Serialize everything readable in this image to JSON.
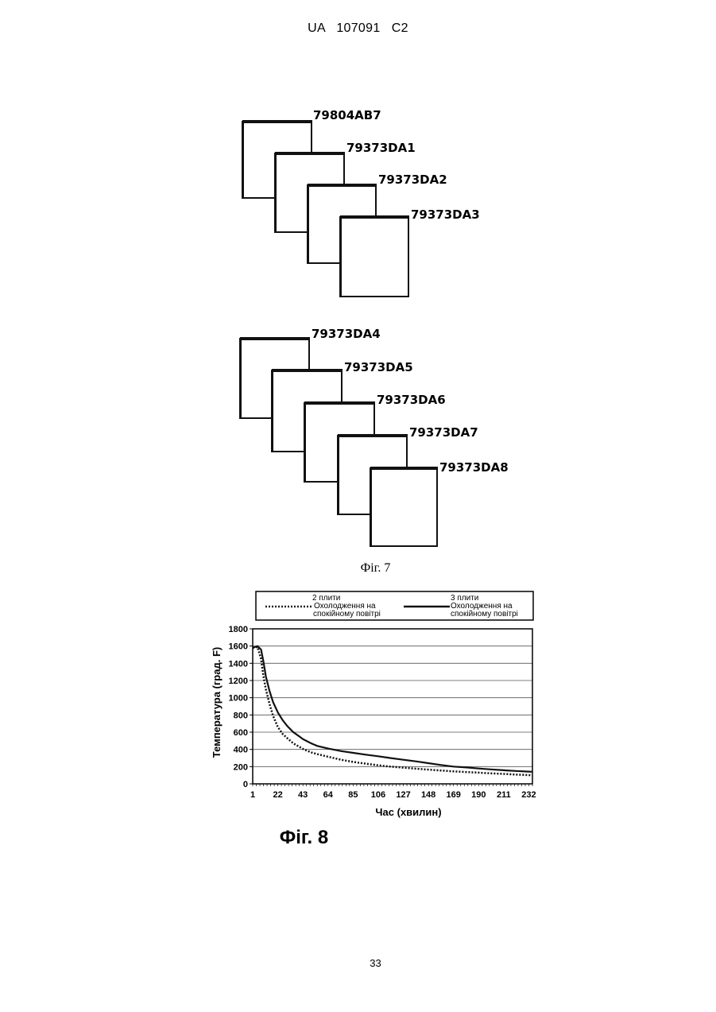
{
  "header": {
    "text": "UA   107091   C2"
  },
  "figure7": {
    "caption": "Фіг. 7",
    "group1": [
      "79804AB7",
      "79373DA1",
      "79373DA2",
      "79373DA3"
    ],
    "group2": [
      "79373DA4",
      "79373DA5",
      "79373DA6",
      "79373DA7",
      "79373DA8"
    ]
  },
  "figure8": {
    "caption": "Фіг. 8"
  },
  "page_number": "33",
  "chart_data": {
    "type": "line",
    "title": "",
    "xlabel": "Час (хвилин)",
    "ylabel": "Температура (град. F)",
    "x_ticks": [
      "1",
      "22",
      "43",
      "64",
      "85",
      "106",
      "127",
      "148",
      "169",
      "190",
      "211",
      "232"
    ],
    "y_ticks": [
      "0",
      "200",
      "400",
      "600",
      "800",
      "1000",
      "1200",
      "1400",
      "1600",
      "1800"
    ],
    "xlim": [
      1,
      235
    ],
    "ylim": [
      0,
      1800
    ],
    "grid": true,
    "legend_position": "top",
    "x": [
      1,
      5,
      8,
      10,
      12,
      15,
      18,
      22,
      26,
      30,
      35,
      40,
      43,
      50,
      55,
      64,
      75,
      85,
      95,
      106,
      116,
      127,
      138,
      148,
      158,
      169,
      180,
      190,
      200,
      211,
      221,
      232,
      236
    ],
    "series": [
      {
        "name": "2 плити Охолодження на спокійному повітрі",
        "style": "dotted",
        "values": [
          1580,
          1590,
          1450,
          1250,
          1100,
          930,
          790,
          660,
          580,
          530,
          470,
          430,
          405,
          365,
          345,
          315,
          280,
          255,
          235,
          215,
          200,
          188,
          175,
          165,
          155,
          145,
          137,
          130,
          122,
          115,
          108,
          102,
          100
        ]
      },
      {
        "name": "3 плити Охолодження на спокійному повітрі",
        "style": "solid",
        "values": [
          1580,
          1600,
          1560,
          1420,
          1250,
          1080,
          950,
          830,
          740,
          670,
          600,
          550,
          520,
          470,
          440,
          410,
          380,
          360,
          340,
          320,
          300,
          280,
          260,
          240,
          220,
          200,
          190,
          178,
          168,
          158,
          150,
          142,
          140
        ]
      }
    ],
    "colors": {
      "line": "#111111",
      "grid": "#555555",
      "frame": "#000000"
    }
  }
}
